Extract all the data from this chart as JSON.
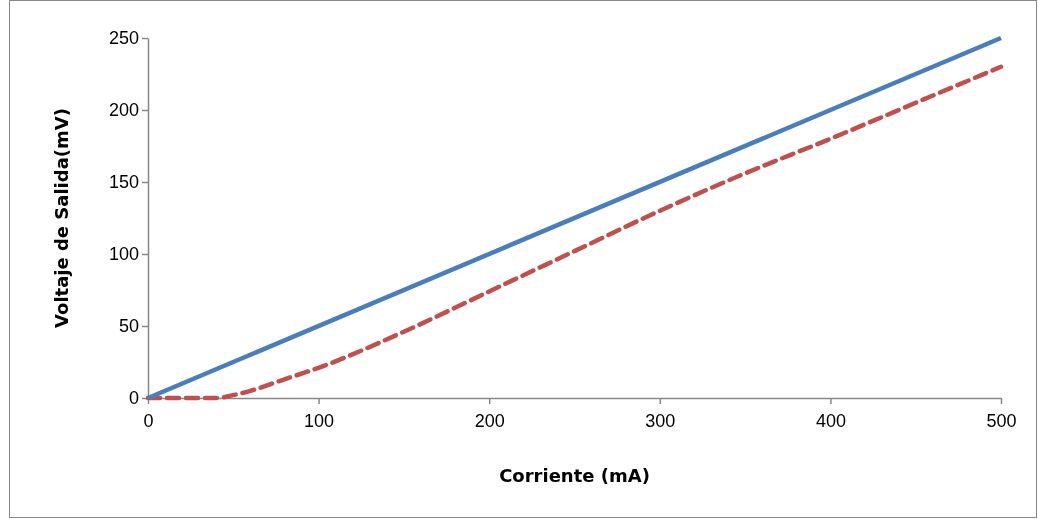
{
  "chart_data": {
    "type": "line",
    "xlabel": "Corriente (mA)",
    "ylabel": "Voltaje de Salida(mV)",
    "xlim": [
      0,
      500
    ],
    "xticks": [
      0,
      100,
      200,
      300,
      400,
      500
    ],
    "ylim": [
      0,
      250
    ],
    "yticks": [
      0,
      50,
      100,
      150,
      200,
      250
    ],
    "grid": false,
    "legend": false,
    "marker": "none",
    "series": [
      {
        "color": "#4a7ebb",
        "line_style": "solid",
        "x": [
          0,
          500
        ],
        "values": [
          0,
          250
        ]
      },
      {
        "color": "#c0504d",
        "line_style": "dashed",
        "x": [
          0,
          20,
          40,
          50,
          60,
          80,
          100,
          150,
          200,
          250,
          300,
          350,
          400,
          450,
          500
        ],
        "values": [
          0,
          0,
          0,
          2,
          5,
          13,
          21,
          46,
          74,
          102,
          130,
          156,
          180,
          205,
          230
        ]
      }
    ]
  }
}
